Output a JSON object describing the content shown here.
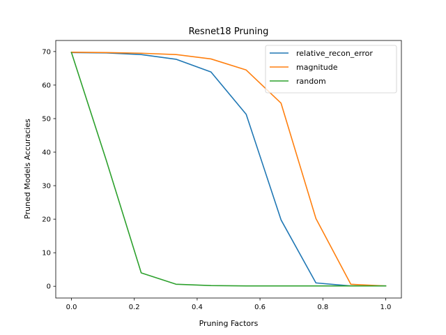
{
  "chart_data": {
    "type": "line",
    "title": "Resnet18 Pruning",
    "xlabel": "Pruning Factors",
    "ylabel": "Pruned Models Accuracies",
    "xlim": [
      -0.05,
      1.05
    ],
    "ylim": [
      -3.5,
      73.3
    ],
    "xticks": [
      0.0,
      0.2,
      0.4,
      0.6,
      0.8,
      1.0
    ],
    "xtick_labels": [
      "0.0",
      "0.2",
      "0.4",
      "0.6",
      "0.8",
      "1.0"
    ],
    "yticks": [
      0,
      10,
      20,
      30,
      40,
      50,
      60,
      70
    ],
    "ytick_labels": [
      "0",
      "10",
      "20",
      "30",
      "40",
      "50",
      "60",
      "70"
    ],
    "grid": false,
    "legend_position": "top-right",
    "x": [
      0.0,
      0.111,
      0.222,
      0.333,
      0.444,
      0.556,
      0.667,
      0.778,
      0.889,
      1.0
    ],
    "series": [
      {
        "name": "relative_recon_error",
        "color": "#1f77b4",
        "values": [
          69.7,
          69.6,
          69.1,
          67.7,
          63.9,
          51.3,
          19.8,
          1.0,
          0.1,
          0.1
        ]
      },
      {
        "name": "magnitude",
        "color": "#ff7f0e",
        "values": [
          69.8,
          69.7,
          69.5,
          69.1,
          67.8,
          64.5,
          54.6,
          20.2,
          0.6,
          0.1
        ]
      },
      {
        "name": "random",
        "color": "#2ca02c",
        "values": [
          69.7,
          37.5,
          4.0,
          0.6,
          0.2,
          0.1,
          0.1,
          0.1,
          0.1,
          0.1
        ]
      }
    ]
  }
}
